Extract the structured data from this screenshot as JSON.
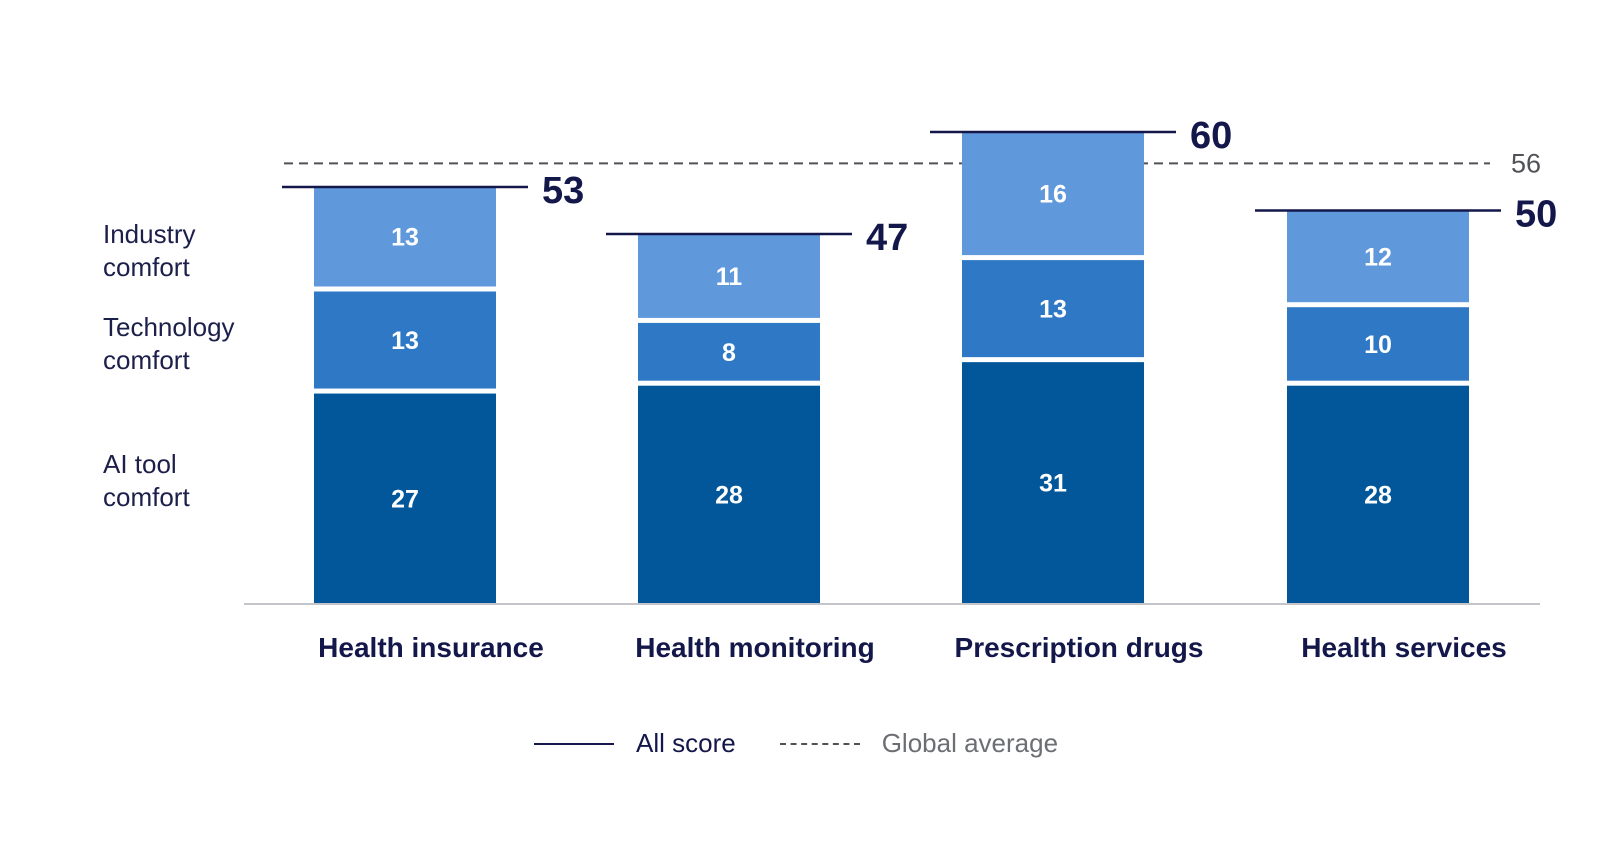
{
  "chart_data": {
    "type": "bar",
    "stacked": true,
    "categories": [
      "Health insurance",
      "Health monitoring",
      "Prescription drugs",
      "Health services"
    ],
    "series": [
      {
        "name": "AI tool comfort",
        "label_lines": [
          "AI tool",
          "comfort"
        ],
        "values": [
          27,
          28,
          31,
          28
        ],
        "color": "#02579a"
      },
      {
        "name": "Technology comfort",
        "label_lines": [
          "Technology",
          "comfort"
        ],
        "values": [
          13,
          8,
          13,
          10
        ],
        "color": "#2e78c6"
      },
      {
        "name": "Industry comfort",
        "label_lines": [
          "Industry",
          "comfort"
        ],
        "values": [
          13,
          11,
          16,
          12
        ],
        "color": "#5f98db"
      }
    ],
    "totals": {
      "name": "All score",
      "values": [
        53,
        47,
        60,
        50
      ],
      "color": "#14174a"
    },
    "global_average": {
      "name": "Global average",
      "value": 56,
      "label": "56",
      "color": "#505257"
    },
    "ylim": [
      0,
      60
    ],
    "legend": [
      {
        "label": "All score",
        "style": "solid"
      },
      {
        "label": "Global average",
        "style": "dashed"
      }
    ]
  }
}
